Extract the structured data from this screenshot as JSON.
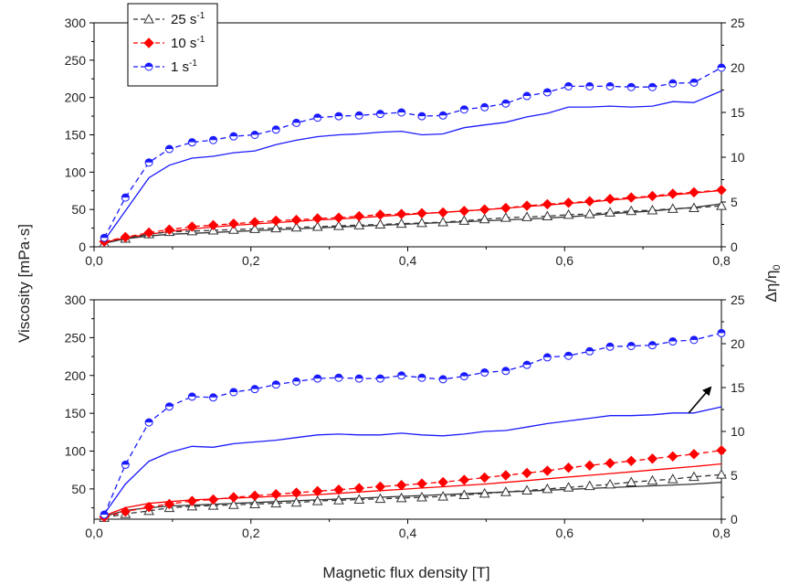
{
  "chart_data": {
    "type": "line",
    "xlabel": "Magnetic flux density [T]",
    "ylabel": "Viscosity [mPa·s]",
    "y2label": "Δη/η",
    "y2label_sub": "0",
    "x_ticks": [
      "0,0",
      "0,2",
      "0,4",
      "0,6",
      "0,8"
    ],
    "x_tick_values": [
      0,
      0.2,
      0.4,
      0.6,
      0.8
    ],
    "xlim": [
      0,
      0.8
    ],
    "legend": {
      "placement": "top-left",
      "entries": [
        {
          "base": "25 s",
          "sup": "-1",
          "color": "#333333",
          "marker": "open-triangle"
        },
        {
          "base": "10 s",
          "sup": "-1",
          "color": "#ff0000",
          "marker": "filled-diamond"
        },
        {
          "base": "1 s",
          "sup": "-1",
          "color": "#1a1aff",
          "marker": "half-filled-circle"
        }
      ]
    },
    "panels": [
      {
        "name": "top",
        "ylim": [
          0,
          300
        ],
        "y_ticks": [
          "0",
          "50",
          "100",
          "150",
          "200",
          "250",
          "300"
        ],
        "y_tick_values": [
          0,
          50,
          100,
          150,
          200,
          250,
          300
        ],
        "y2lim": [
          0,
          25
        ],
        "y2_ticks": [
          "0",
          "5",
          "10",
          "15",
          "20",
          "25"
        ],
        "y2_tick_values": [
          0,
          5,
          10,
          15,
          20,
          25
        ],
        "x": [
          0.013,
          0.04,
          0.07,
          0.096,
          0.125,
          0.152,
          0.178,
          0.205,
          0.232,
          0.258,
          0.285,
          0.312,
          0.338,
          0.365,
          0.392,
          0.418,
          0.445,
          0.472,
          0.498,
          0.525,
          0.552,
          0.578,
          0.605,
          0.632,
          0.658,
          0.685,
          0.712,
          0.738,
          0.765,
          0.8
        ],
        "series": [
          {
            "name": "25 s-1",
            "color": "#333333",
            "marker": "open-triangle",
            "values": [
              5,
              11,
              17,
              20,
              21,
              22,
              23,
              24,
              25,
              26,
              27,
              28,
              29,
              30,
              31,
              32,
              33,
              35,
              37,
              39,
              40,
              41,
              43,
              44,
              46,
              48,
              49,
              51,
              52,
              55
            ]
          },
          {
            "name": "10 s-1",
            "color": "#ff0000",
            "marker": "filled-diamond",
            "values": [
              7,
              13,
              19,
              23,
              27,
              29,
              31,
              33,
              35,
              36,
              38,
              39,
              41,
              43,
              44,
              45,
              46,
              48,
              50,
              52,
              55,
              57,
              59,
              61,
              64,
              66,
              68,
              71,
              73,
              76
            ]
          },
          {
            "name": "1 s-1",
            "color": "#1a1aff",
            "marker": "half-filled-circle",
            "values": [
              12,
              66,
              113,
              131,
              140,
              143,
              148,
              150,
              157,
              166,
              173,
              175,
              176,
              178,
              180,
              175,
              176,
              184,
              187,
              192,
              202,
              207,
              215,
              215,
              215,
              214,
              214,
              219,
              220,
              240
            ]
          }
        ],
        "ratio_curves": [
          {
            "color": "#333333",
            "values": [
              0.4,
              0.9,
              1.2,
              1.4,
              1.5,
              1.6,
              1.7,
              1.8,
              1.9,
              2.0,
              2.1,
              2.2,
              2.3,
              2.4,
              2.5,
              2.6,
              2.7,
              2.8,
              2.9,
              3.0,
              3.1,
              3.2,
              3.35,
              3.5,
              3.7,
              3.85,
              4.0,
              4.2,
              4.4,
              4.8
            ]
          },
          {
            "color": "#ff0000",
            "values": [
              0.5,
              1.0,
              1.4,
              1.7,
              2.0,
              2.2,
              2.4,
              2.55,
              2.7,
              2.85,
              3.0,
              3.1,
              3.25,
              3.4,
              3.55,
              3.7,
              3.85,
              4.0,
              4.15,
              4.3,
              4.5,
              4.65,
              4.85,
              5.0,
              5.2,
              5.4,
              5.6,
              5.8,
              6.0,
              6.3
            ]
          },
          {
            "color": "#1a1aff",
            "values": [
              0.7,
              4.0,
              7.7,
              9.1,
              9.9,
              10.1,
              10.5,
              10.7,
              11.4,
              11.9,
              12.3,
              12.5,
              12.6,
              12.8,
              12.9,
              12.5,
              12.6,
              13.3,
              13.6,
              13.9,
              14.5,
              14.9,
              15.6,
              15.6,
              15.7,
              15.6,
              15.7,
              16.2,
              16.1,
              17.4
            ]
          }
        ]
      },
      {
        "name": "bottom",
        "ylim": [
          10,
          300
        ],
        "y_ticks": [
          "50",
          "100",
          "150",
          "200",
          "250",
          "300"
        ],
        "y_tick_values": [
          50,
          100,
          150,
          200,
          250,
          300
        ],
        "y2lim": [
          0,
          25
        ],
        "y2_ticks": [
          "0",
          "5",
          "10",
          "15",
          "20",
          "25"
        ],
        "y2_tick_values": [
          0,
          5,
          10,
          15,
          20,
          25
        ],
        "x": [
          0.013,
          0.04,
          0.07,
          0.096,
          0.125,
          0.152,
          0.178,
          0.205,
          0.232,
          0.258,
          0.285,
          0.312,
          0.338,
          0.365,
          0.392,
          0.418,
          0.445,
          0.472,
          0.498,
          0.525,
          0.552,
          0.578,
          0.605,
          0.632,
          0.658,
          0.685,
          0.712,
          0.738,
          0.765,
          0.8
        ],
        "series": [
          {
            "name": "25 s-1",
            "color": "#333333",
            "marker": "open-triangle",
            "values": [
              12,
              17,
              21,
              25,
              27,
              28,
              29,
              30,
              31,
              32,
              34,
              35,
              36,
              37,
              38,
              39,
              40,
              42,
              44,
              46,
              48,
              50,
              52,
              54,
              56,
              59,
              61,
              63,
              66,
              69
            ]
          },
          {
            "name": "10 s-1",
            "color": "#ff0000",
            "marker": "filled-diamond",
            "values": [
              13,
              20,
              26,
              30,
              34,
              36,
              39,
              41,
              43,
              45,
              47,
              49,
              51,
              53,
              55,
              57,
              59,
              62,
              65,
              68,
              71,
              74,
              78,
              81,
              84,
              87,
              90,
              93,
              96,
              101
            ]
          },
          {
            "name": "1 s-1",
            "color": "#1a1aff",
            "marker": "half-filled-circle",
            "values": [
              16,
              82,
              138,
              159,
              172,
              171,
              178,
              182,
              188,
              192,
              196,
              197,
              196,
              196,
              200,
              197,
              195,
              199,
              204,
              206,
              214,
              224,
              226,
              232,
              238,
              239,
              240,
              245,
              247,
              256
            ]
          }
        ],
        "ratio_curves": [
          {
            "color": "#333333",
            "values": [
              0.3,
              1.0,
              1.3,
              1.5,
              1.6,
              1.7,
              1.8,
              1.9,
              2.0,
              2.1,
              2.2,
              2.3,
              2.4,
              2.5,
              2.6,
              2.7,
              2.8,
              2.9,
              3.0,
              3.1,
              3.2,
              3.3,
              3.4,
              3.5,
              3.6,
              3.7,
              3.8,
              3.9,
              4.0,
              4.2
            ]
          },
          {
            "color": "#ff0000",
            "values": [
              0.4,
              1.3,
              1.8,
              2.0,
              2.2,
              2.3,
              2.4,
              2.5,
              2.6,
              2.7,
              2.8,
              2.95,
              3.1,
              3.25,
              3.4,
              3.55,
              3.7,
              3.85,
              4.0,
              4.2,
              4.4,
              4.6,
              4.8,
              5.0,
              5.2,
              5.4,
              5.6,
              5.8,
              6.0,
              6.3
            ]
          },
          {
            "color": "#1a1aff",
            "values": [
              0.6,
              4.0,
              6.6,
              7.6,
              8.3,
              8.2,
              8.6,
              8.8,
              9.0,
              9.3,
              9.6,
              9.7,
              9.6,
              9.6,
              9.8,
              9.6,
              9.5,
              9.7,
              10.0,
              10.1,
              10.5,
              10.9,
              11.2,
              11.5,
              11.8,
              11.8,
              11.9,
              12.1,
              12.1,
              12.8
            ]
          }
        ]
      }
    ]
  }
}
